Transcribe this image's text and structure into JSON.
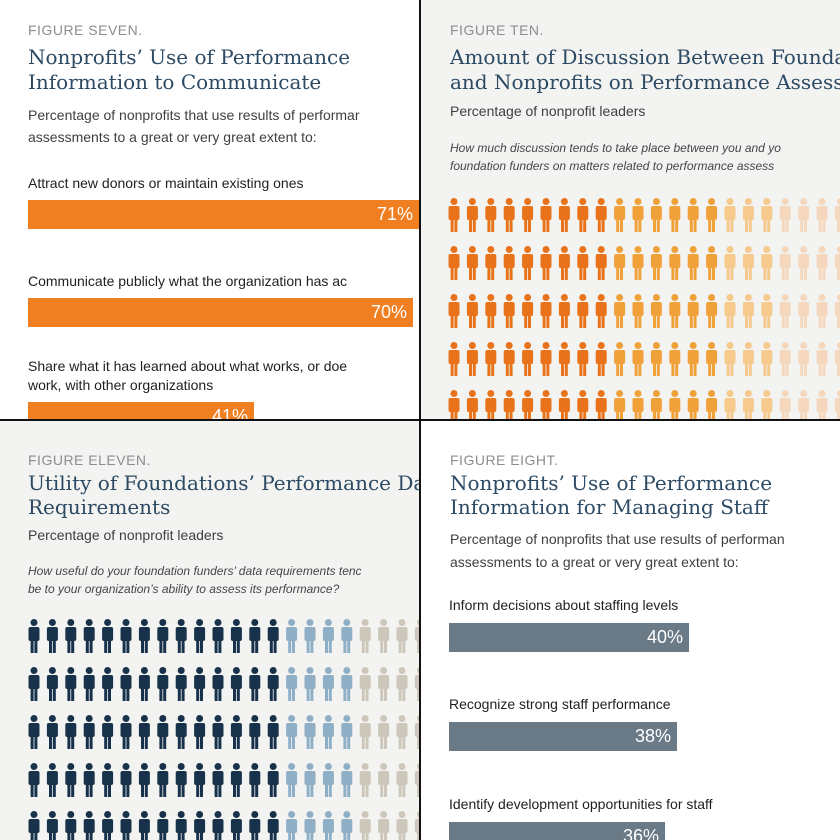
{
  "colors": {
    "orange": "#f07f22",
    "slate": "#6a7a87",
    "title_blue": "#2c4a63",
    "label_gray": "#8d8d8d"
  },
  "figure_seven": {
    "label": "FIGURE SEVEN.",
    "title_line1": "Nonprofits’ Use of Performance",
    "title_line2": "Information to Communicate",
    "subtitle_line1": "Percentage of nonprofits that use results of performar",
    "subtitle_line2": "assessments to a great or very great extent to:",
    "chart_data": {
      "type": "bar",
      "orientation": "horizontal",
      "title": "Nonprofits’ Use of Performance Information to Communicate",
      "categories": [
        "Attract new donors or maintain existing ones",
        "Communicate publicly what the organization has ac",
        "Share what it has learned about what works, or doe work, with other organizations"
      ],
      "category_lines": [
        [
          "Attract new donors or maintain existing ones"
        ],
        [
          "Communicate publicly what the organization has ac"
        ],
        [
          "Share what it has learned about what works, or doe",
          "work, with other organizations"
        ]
      ],
      "values": [
        71,
        70,
        41
      ],
      "value_labels": [
        "71%",
        "70%",
        "41%"
      ],
      "unit": "%",
      "xlim": [
        0,
        100
      ]
    }
  },
  "figure_ten": {
    "label": "FIGURE TEN.",
    "title_line1": "Amount of Discussion Between Founda",
    "title_line2": "and Nonprofits on Performance Assessn",
    "subtitle": "Percentage of nonprofit leaders",
    "question_line1": "How much discussion tends to take place between you and yo",
    "question_line2": "foundation funders on matters related to performance assess",
    "chart_data": {
      "type": "pictogram",
      "title": "Amount of Discussion Between Foundations and Nonprofits on Performance Assessment",
      "visible_rows": 5,
      "columns_visible": 22,
      "series": [
        {
          "name": "shade 1",
          "color": "#e8731a",
          "count_per_row": 9
        },
        {
          "name": "shade 2",
          "color": "#f1a13a",
          "count_per_row": 6
        },
        {
          "name": "shade 3",
          "color": "#f6c98c",
          "count_per_row": 3
        },
        {
          "name": "shade 4",
          "color": "#f4d7bd",
          "count_per_row": 4
        }
      ]
    }
  },
  "figure_eleven": {
    "label": "FIGURE ELEVEN.",
    "title_line1": "Utility of Foundations’ Performance Data",
    "title_line2": "Requirements",
    "subtitle": "Percentage of nonprofit leaders",
    "question_line1": "How useful do your foundation funders’ data requirements tenc",
    "question_line2": "be to your organization’s ability to assess its performance?",
    "chart_data": {
      "type": "pictogram",
      "title": "Utility of Foundations’ Performance Data Requirements",
      "visible_rows": 5,
      "columns_visible": 22,
      "series": [
        {
          "name": "shade 1",
          "color": "#18324b",
          "count_per_row": 14
        },
        {
          "name": "shade 2",
          "color": "#8fafc7",
          "count_per_row": 4
        },
        {
          "name": "shade 3",
          "color": "#cdc7bb",
          "count_per_row": 4
        }
      ]
    }
  },
  "figure_eight": {
    "label": "FIGURE EIGHT.",
    "title_line1": "Nonprofits’ Use of Performance",
    "title_line2": "Information for Managing Staff",
    "subtitle_line1": "Percentage of nonprofits that use results of performan",
    "subtitle_line2": "assessments to a great or very great extent to:",
    "chart_data": {
      "type": "bar",
      "orientation": "horizontal",
      "title": "Nonprofits’ Use of Performance Information for Managing Staff",
      "categories": [
        "Inform decisions about staffing levels",
        "Recognize strong staff performance",
        "Identify development opportunities for staff"
      ],
      "category_lines": [
        [
          "Inform decisions about staffing levels"
        ],
        [
          "Recognize strong staff performance"
        ],
        [
          "Identify development opportunities for staff"
        ]
      ],
      "values": [
        40,
        38,
        36
      ],
      "value_labels": [
        "40%",
        "38%",
        "36%"
      ],
      "unit": "%",
      "xlim": [
        0,
        100
      ]
    }
  }
}
